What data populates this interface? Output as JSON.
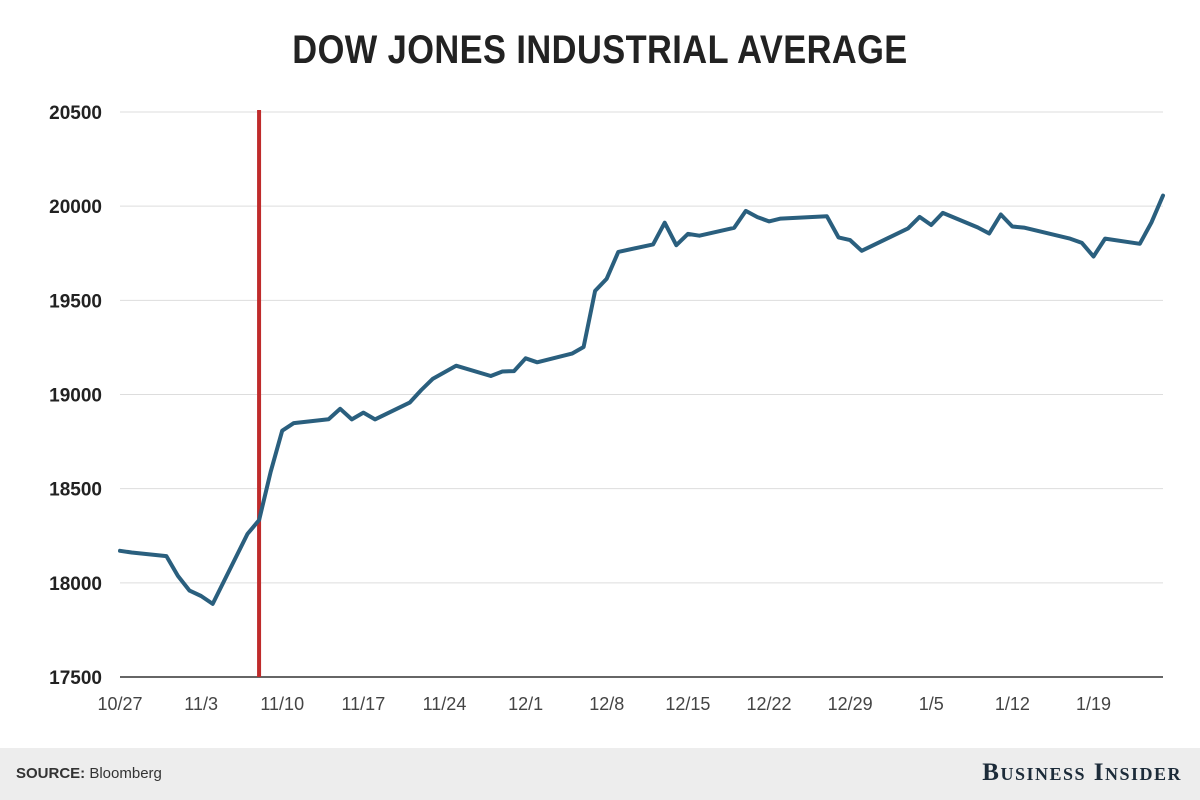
{
  "chart_data": {
    "type": "line",
    "title": "DOW JONES INDUSTRIAL AVERAGE",
    "xlabel": "",
    "ylabel": "",
    "ylim": [
      17500,
      20500
    ],
    "yticks": [
      17500,
      18000,
      18500,
      19000,
      19500,
      20000,
      20500
    ],
    "xticks": [
      "10/27",
      "11/3",
      "11/10",
      "11/17",
      "11/24",
      "12/1",
      "12/8",
      "12/15",
      "12/22",
      "12/29",
      "1/5",
      "1/12",
      "1/19"
    ],
    "xlim": [
      "2016-10-27",
      "2017-01-25"
    ],
    "grid": true,
    "line_color": "#2a5f7e",
    "marker_color": "#bf2b2b",
    "marker_x": "2016-11-08",
    "series": [
      {
        "x": [
          "2016-10-27",
          "2016-10-28",
          "2016-10-31",
          "2016-11-01",
          "2016-11-02",
          "2016-11-03",
          "2016-11-04",
          "2016-11-07",
          "2016-11-08",
          "2016-11-09",
          "2016-11-10",
          "2016-11-11",
          "2016-11-14",
          "2016-11-15",
          "2016-11-16",
          "2016-11-17",
          "2016-11-18",
          "2016-11-21",
          "2016-11-22",
          "2016-11-23",
          "2016-11-25",
          "2016-11-28",
          "2016-11-29",
          "2016-11-30",
          "2016-12-01",
          "2016-12-02",
          "2016-12-05",
          "2016-12-06",
          "2016-12-07",
          "2016-12-08",
          "2016-12-09",
          "2016-12-12",
          "2016-12-13",
          "2016-12-14",
          "2016-12-15",
          "2016-12-16",
          "2016-12-19",
          "2016-12-20",
          "2016-12-21",
          "2016-12-22",
          "2016-12-23",
          "2016-12-27",
          "2016-12-28",
          "2016-12-29",
          "2016-12-30",
          "2017-01-03",
          "2017-01-04",
          "2017-01-05",
          "2017-01-06",
          "2017-01-09",
          "2017-01-10",
          "2017-01-11",
          "2017-01-12",
          "2017-01-13",
          "2017-01-17",
          "2017-01-18",
          "2017-01-19",
          "2017-01-20",
          "2017-01-23",
          "2017-01-24",
          "2017-01-25"
        ],
        "values": [
          18170,
          18161,
          18142,
          18037,
          17959,
          17930,
          17888,
          18260,
          18333,
          18590,
          18808,
          18848,
          18869,
          18924,
          18868,
          18904,
          18868,
          18957,
          19024,
          19084,
          19153,
          19098,
          19122,
          19124,
          19192,
          19171,
          19217,
          19252,
          19550,
          19615,
          19757,
          19797,
          19912,
          19793,
          19853,
          19843,
          19885,
          19975,
          19942,
          19919,
          19934,
          19946,
          19834,
          19820,
          19763,
          19882,
          19943,
          19900,
          19964,
          19887,
          19855,
          19956,
          19892,
          19886,
          19827,
          19805,
          19733,
          19828,
          19800,
          19913,
          20056
        ]
      }
    ]
  },
  "footer": {
    "source_label": "SOURCE:",
    "source_value": "Bloomberg",
    "brand": "Business Insider"
  }
}
